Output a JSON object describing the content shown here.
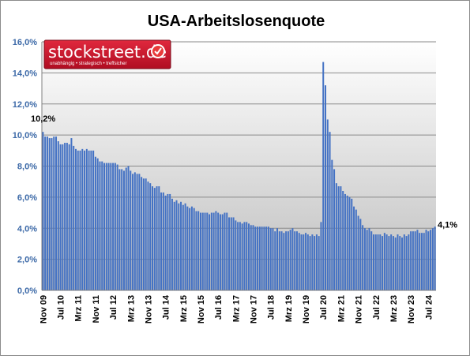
{
  "chart_data": {
    "type": "bar",
    "title": "USA-Arbeitslosenquote",
    "xlabel": "",
    "ylabel": "",
    "ylim": [
      0,
      16
    ],
    "y_ticks": [
      "0,0%",
      "2,0%",
      "4,0%",
      "6,0%",
      "8,0%",
      "10,0%",
      "12,0%",
      "14,0%",
      "16,0%"
    ],
    "x_tick_labels": [
      "Nov 09",
      "Jul 10",
      "Mrz 11",
      "Nov 11",
      "Jul 12",
      "Mrz 13",
      "Nov 13",
      "Jul 14",
      "Mrz 15",
      "Nov 15",
      "Jul 16",
      "Mrz 17",
      "Nov 17",
      "Jul 18",
      "Mrz 19",
      "Nov 19",
      "Jul 20",
      "Mrz 21",
      "Nov 21",
      "Jul 22",
      "Mrz 23",
      "Nov 23",
      "Jul 24"
    ],
    "bar_color": "#4472c4",
    "grid": true,
    "annotations": [
      {
        "text": "10,2%",
        "at": "first"
      },
      {
        "text": "4,1%",
        "at": "last"
      }
    ],
    "series": [
      {
        "values": [
          10.2,
          9.9,
          9.9,
          9.8,
          9.8,
          9.9,
          9.9,
          9.6,
          9.4,
          9.4,
          9.5,
          9.5,
          9.4,
          9.8,
          9.3,
          9.1,
          9.0,
          9.0,
          9.1,
          9.0,
          9.1,
          9.0,
          9.0,
          9.0,
          8.6,
          8.5,
          8.3,
          8.3,
          8.2,
          8.2,
          8.2,
          8.2,
          8.2,
          8.2,
          8.1,
          7.8,
          7.8,
          7.7,
          7.9,
          8.0,
          7.7,
          7.5,
          7.6,
          7.5,
          7.5,
          7.3,
          7.2,
          7.2,
          7.0,
          6.9,
          6.7,
          6.6,
          6.7,
          6.7,
          6.3,
          6.3,
          6.1,
          6.2,
          6.2,
          5.9,
          5.7,
          5.8,
          5.6,
          5.7,
          5.5,
          5.6,
          5.4,
          5.3,
          5.4,
          5.3,
          5.1,
          5.1,
          5.0,
          5.0,
          5.0,
          5.0,
          4.9,
          5.0,
          5.0,
          5.1,
          5.0,
          4.9,
          4.9,
          5.0,
          5.0,
          4.7,
          4.7,
          4.7,
          4.5,
          4.4,
          4.4,
          4.3,
          4.4,
          4.4,
          4.3,
          4.2,
          4.2,
          4.1,
          4.1,
          4.1,
          4.1,
          4.1,
          4.1,
          4.1,
          4.0,
          4.0,
          3.8,
          4.0,
          3.8,
          3.8,
          3.7,
          3.8,
          3.8,
          3.9,
          4.0,
          3.8,
          3.8,
          3.7,
          3.6,
          3.6,
          3.7,
          3.6,
          3.5,
          3.6,
          3.5,
          3.6,
          3.5,
          4.4,
          14.7,
          13.2,
          11.0,
          10.2,
          8.4,
          7.8,
          6.9,
          6.7,
          6.7,
          6.4,
          6.2,
          6.1,
          6.0,
          5.9,
          5.4,
          5.2,
          4.8,
          4.6,
          4.2,
          4.0,
          3.9,
          4.0,
          3.8,
          3.6,
          3.6,
          3.6,
          3.6,
          3.5,
          3.7,
          3.6,
          3.5,
          3.6,
          3.5,
          3.4,
          3.6,
          3.5,
          3.4,
          3.6,
          3.5,
          3.6,
          3.8,
          3.8,
          3.8,
          3.9,
          3.7,
          3.7,
          3.7,
          3.9,
          3.8,
          3.9,
          4.0,
          4.1
        ]
      }
    ]
  },
  "logo": {
    "name": "stockstreet.de",
    "tagline": "unabhängig • strategisch • treffsicher",
    "colors": {
      "main": "#c8102e",
      "border": "#7a0a1a",
      "accent": "#e83a3a"
    }
  }
}
